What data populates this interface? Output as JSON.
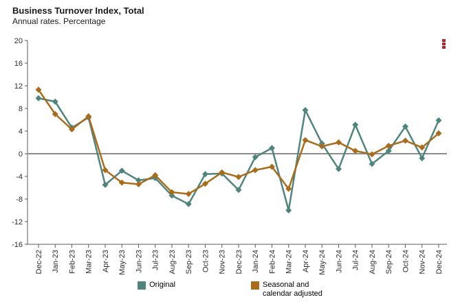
{
  "header": {
    "title": "Business Turnover Index, Total",
    "subtitle": "Annual rates. Percentage"
  },
  "menu": {
    "icon": "kebab-menu-icon",
    "color": "#b41f2e"
  },
  "axis": {
    "line_color": "#5a5a5a",
    "zero_line_color": "#8c8c8c",
    "label_color": "#2b2b2b"
  },
  "legend": {
    "items": [
      {
        "label_line1": "Original",
        "label_line2": "",
        "color": "#4f857c"
      },
      {
        "label_line1": "Seasonal and",
        "label_line2": "calendar adjusted",
        "color": "#a96c1c"
      }
    ]
  },
  "chart_data": {
    "type": "line",
    "title": "Business Turnover Index, Total",
    "subtitle": "Annual rates. Percentage",
    "xlabel": "",
    "ylabel": "",
    "ylim": [
      -16,
      20
    ],
    "ytick_step": 4,
    "grid": false,
    "zero_line": true,
    "legend_position": "bottom",
    "marker": "diamond",
    "categories": [
      "Dec-22",
      "Jan-23",
      "Feb-23",
      "Mar-23",
      "Apr-23",
      "May-23",
      "Jun-23",
      "Jul-23",
      "Aug-23",
      "Sep-23",
      "Oct-23",
      "Nov-23",
      "Dec-23",
      "Jan-24",
      "Feb-24",
      "Mar-24",
      "Apr-24",
      "May-24",
      "Jun-24",
      "Jul-24",
      "Aug-24",
      "Sep-24",
      "Oct-24",
      "Nov-24",
      "Dec-24"
    ],
    "series": [
      {
        "name": "Original",
        "color": "#4f857c",
        "values": [
          9.8,
          9.2,
          4.6,
          6.4,
          -5.5,
          -3.0,
          -4.7,
          -4.3,
          -7.4,
          -8.9,
          -3.6,
          -3.5,
          -6.4,
          -0.6,
          1.0,
          -10.0,
          7.7,
          1.8,
          -2.7,
          5.1,
          -1.8,
          0.5,
          4.8,
          -0.8,
          5.9
        ]
      },
      {
        "name": "Seasonal and calendar adjusted",
        "color": "#a96c1c",
        "values": [
          11.3,
          7.0,
          4.3,
          6.6,
          -2.9,
          -5.1,
          -5.4,
          -3.8,
          -6.8,
          -7.1,
          -5.3,
          -3.3,
          -4.1,
          -2.9,
          -2.3,
          -6.2,
          2.4,
          1.3,
          2.0,
          0.5,
          -0.1,
          1.4,
          2.3,
          1.1,
          3.6
        ]
      }
    ]
  }
}
